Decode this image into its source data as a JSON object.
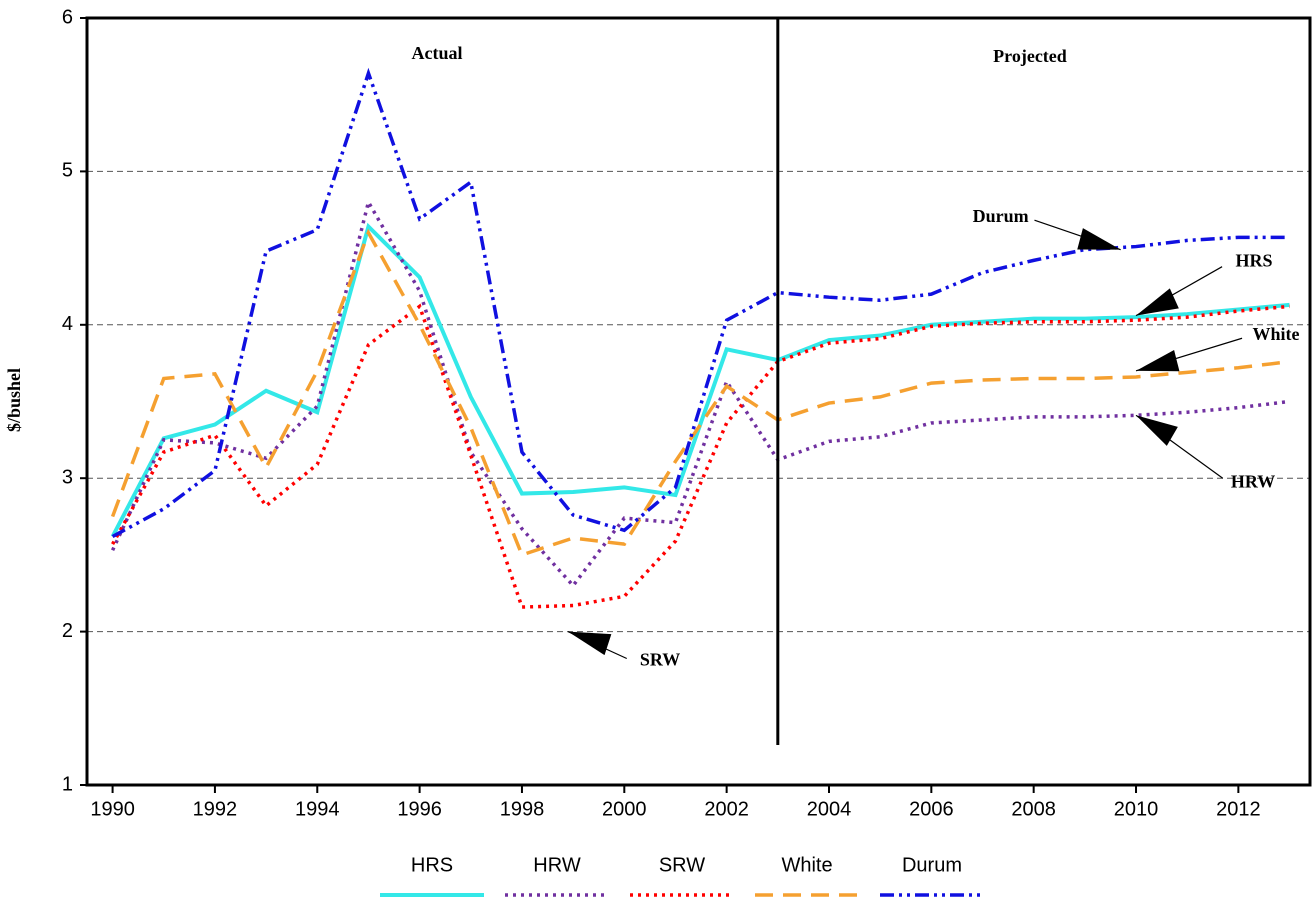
{
  "chart_data": {
    "type": "line",
    "y_label": "$/bushel",
    "x": [
      1990,
      1991,
      1992,
      1993,
      1994,
      1995,
      1996,
      1997,
      1998,
      1999,
      2000,
      2001,
      2002,
      2003,
      2004,
      2005,
      2006,
      2007,
      2008,
      2009,
      2010,
      2011,
      2012,
      2013
    ],
    "series": [
      {
        "name": "HRS",
        "color": "#33e8e8",
        "values": [
          2.62,
          3.26,
          3.35,
          3.57,
          3.43,
          4.64,
          4.31,
          3.53,
          2.9,
          2.91,
          2.94,
          2.89,
          3.84,
          3.77,
          3.9,
          3.93,
          4.0,
          4.02,
          4.04,
          4.04,
          4.05,
          4.07,
          4.1,
          4.13
        ]
      },
      {
        "name": "HRW",
        "color": "#7030a0",
        "values": [
          2.53,
          3.25,
          3.23,
          3.13,
          3.47,
          4.8,
          4.22,
          3.17,
          2.67,
          2.3,
          2.74,
          2.71,
          3.63,
          3.12,
          3.24,
          3.27,
          3.36,
          3.38,
          3.4,
          3.4,
          3.41,
          3.43,
          3.46,
          3.5
        ]
      },
      {
        "name": "SRW",
        "color": "#ff0000",
        "values": [
          2.57,
          3.17,
          3.28,
          2.82,
          3.09,
          3.87,
          4.12,
          3.15,
          2.16,
          2.17,
          2.23,
          2.59,
          3.36,
          3.76,
          3.88,
          3.91,
          3.99,
          4.01,
          4.02,
          4.02,
          4.03,
          4.05,
          4.09,
          4.12
        ]
      },
      {
        "name": "White",
        "color": "#f5a030",
        "values": [
          2.75,
          3.65,
          3.68,
          3.07,
          3.7,
          4.6,
          4.0,
          3.33,
          2.5,
          2.61,
          2.57,
          3.11,
          3.6,
          3.38,
          3.49,
          3.53,
          3.62,
          3.64,
          3.65,
          3.65,
          3.66,
          3.69,
          3.72,
          3.76
        ]
      },
      {
        "name": "Durum",
        "color": "#1010e0",
        "values": [
          2.62,
          2.8,
          3.05,
          4.48,
          4.62,
          5.64,
          4.69,
          4.93,
          3.17,
          2.76,
          2.66,
          2.94,
          4.03,
          4.21,
          4.18,
          4.16,
          4.2,
          4.34,
          4.42,
          4.49,
          4.51,
          4.55,
          4.57,
          4.57
        ]
      }
    ],
    "xlim": [
      1989.5,
      2013.4
    ],
    "xticks": [
      1990,
      1992,
      1994,
      1996,
      1998,
      2000,
      2002,
      2004,
      2006,
      2008,
      2010,
      2012
    ],
    "ylim": [
      1,
      6
    ],
    "yticks": [
      1,
      2,
      3,
      4,
      5,
      6
    ],
    "grid": true,
    "divider": 2003,
    "regions": [
      "Actual",
      "Projected"
    ],
    "annotations": [
      {
        "text": "Durum",
        "x": 2009.7,
        "y": 4.49
      },
      {
        "text": "HRS",
        "x": 2010,
        "y": 4.06
      },
      {
        "text": "White",
        "x": 2010,
        "y": 3.7
      },
      {
        "text": "HRW",
        "x": 2010,
        "y": 3.41
      },
      {
        "text": "SRW",
        "x": 1998.9,
        "y": 2.0
      }
    ]
  }
}
